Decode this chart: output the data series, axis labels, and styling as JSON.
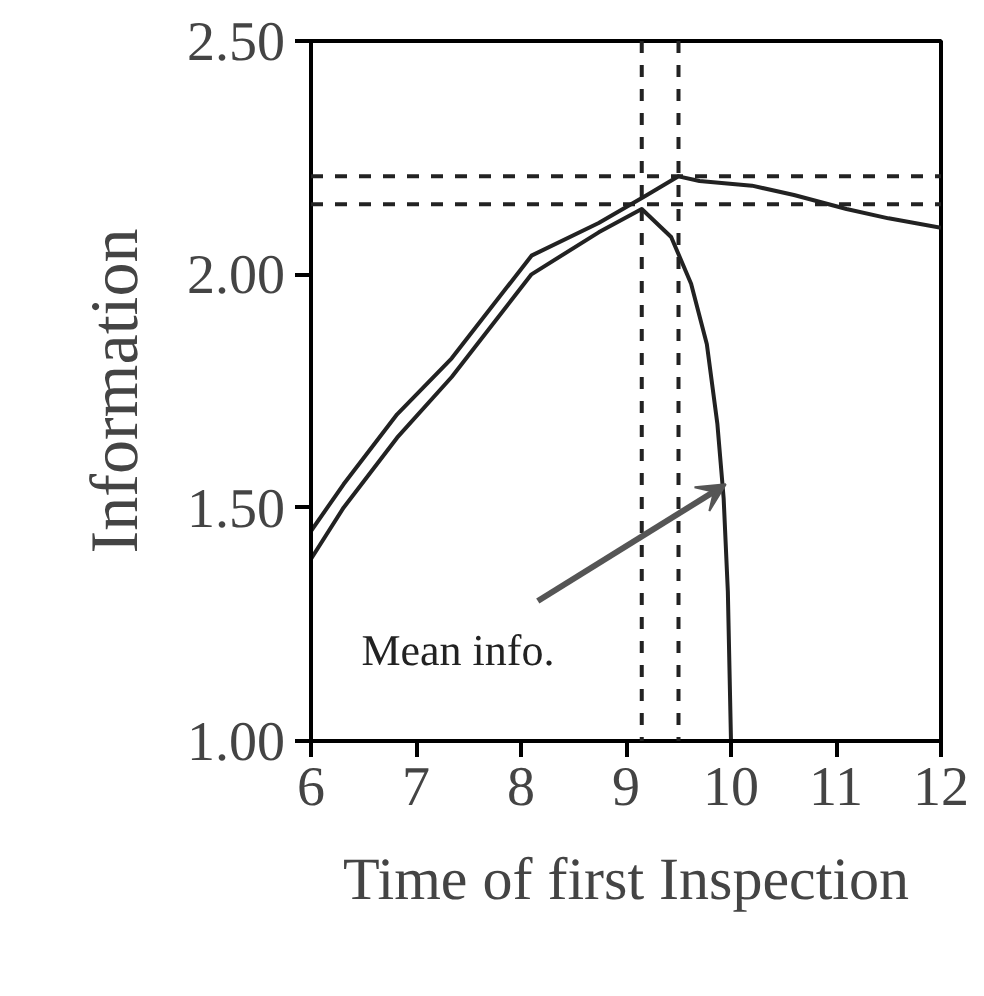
{
  "chart_data": {
    "type": "line",
    "xlabel": "Time of first Inspection",
    "ylabel": "Information",
    "series": [
      {
        "color": "#222222",
        "x": [
          6,
          6.31,
          6.82,
          7.34,
          8.1,
          8.74,
          9.2,
          9.5,
          9.7,
          10.2,
          10.6,
          11.1,
          11.5,
          12
        ],
        "values": [
          1.45,
          1.55,
          1.7,
          1.82,
          2.04,
          2.11,
          2.17,
          2.21,
          2.2,
          2.19,
          2.17,
          2.14,
          2.12,
          2.1
        ]
      },
      {
        "color": "#222222",
        "x": [
          6,
          6.31,
          6.82,
          7.34,
          8.1,
          8.74,
          9.15,
          9.43,
          9.62,
          9.77,
          9.87,
          9.93,
          9.97,
          10
        ],
        "values": [
          1.39,
          1.5,
          1.65,
          1.78,
          2.0,
          2.09,
          2.14,
          2.08,
          1.98,
          1.85,
          1.68,
          1.52,
          1.32,
          1.0
        ]
      }
    ],
    "ref_lines": [
      {
        "axis": "y",
        "value": 2.21,
        "line_style": "dashed"
      },
      {
        "axis": "y",
        "value": 2.15,
        "line_style": "dashed"
      },
      {
        "axis": "x",
        "value": 9.15,
        "line_style": "dashed"
      },
      {
        "axis": "x",
        "value": 9.5,
        "line_style": "dashed"
      }
    ],
    "annotations": [
      {
        "text": "Mean info.",
        "x": 9.95,
        "y": 1.55
      }
    ],
    "xlim": [
      6,
      12
    ],
    "ylim": [
      1.0,
      2.5
    ],
    "xticks": [
      6,
      7,
      8,
      9,
      10,
      11,
      12
    ],
    "yticks": [
      {
        "value": 1.0,
        "label": "1.00"
      },
      {
        "value": 1.5,
        "label": "1.50"
      },
      {
        "value": 2.0,
        "label": "2.00"
      },
      {
        "value": 2.5,
        "label": "2.50"
      }
    ],
    "grid": false,
    "marker": "none",
    "line_style": "solid"
  }
}
